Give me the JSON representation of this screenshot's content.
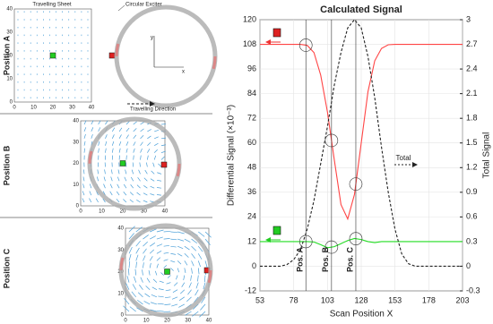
{
  "panels": [
    {
      "label": "Position A",
      "annotations": [
        "Travelling Sheet",
        "Circular Exciter",
        "Travelling Direction"
      ],
      "inset_axes": [
        "y",
        "x"
      ],
      "xticks": [
        0,
        10,
        20,
        30,
        40
      ],
      "yticks": [
        0,
        10,
        20,
        30,
        40
      ]
    },
    {
      "label": "Position B",
      "xticks": [
        0,
        10,
        20,
        30,
        40
      ],
      "yticks": [
        0,
        10,
        20,
        30,
        40
      ]
    },
    {
      "label": "Position C",
      "xticks": [
        0,
        10,
        20,
        30,
        40
      ],
      "yticks": [
        0,
        10,
        20,
        30,
        40
      ]
    }
  ],
  "chart_data": {
    "type": "line",
    "title": "Calculated Signal",
    "x_label": "Scan Position X",
    "y_label": "Differential Signal (×10⁻³)",
    "y2_label": "Total Signal",
    "x": [
      53,
      58,
      63,
      68,
      73,
      78,
      83,
      88,
      93,
      98,
      103,
      108,
      113,
      118,
      123,
      128,
      133,
      138,
      143,
      148,
      153,
      158,
      163,
      168,
      173,
      178,
      183,
      188,
      193,
      198,
      203
    ],
    "series": [
      {
        "color": "#ff4444",
        "values": [
          108,
          108,
          108,
          108,
          108,
          108,
          108,
          107.5,
          104,
          93,
          75,
          52,
          30,
          23,
          35,
          60,
          85,
          100,
          106,
          107.8,
          108,
          108,
          108,
          108,
          108,
          108,
          108,
          108,
          108,
          108,
          108
        ]
      },
      {
        "color": "#22dd22",
        "values": [
          12,
          12,
          12,
          12,
          12,
          12,
          12,
          12,
          11.8,
          10.5,
          9,
          9.5,
          11,
          12.5,
          13.5,
          13,
          12,
          11.5,
          12,
          12,
          12,
          12,
          12,
          12,
          12,
          12,
          12,
          12,
          12,
          12,
          12
        ]
      },
      {
        "color": "#222222",
        "axis": "y2",
        "style": "dashed",
        "values": [
          0,
          0,
          0,
          0,
          0.02,
          0.08,
          0.2,
          0.45,
          0.8,
          1.25,
          1.7,
          2.2,
          2.6,
          2.9,
          3,
          2.9,
          2.55,
          2.05,
          1.45,
          0.9,
          0.45,
          0.15,
          0.03,
          0,
          0,
          0,
          0,
          0,
          0,
          0,
          0
        ]
      }
    ],
    "total_label": "Total",
    "positions": [
      {
        "label": "Pos. A",
        "x": 87
      },
      {
        "label": "Pos. B",
        "x": 106
      },
      {
        "label": "Pos. C",
        "x": 124
      }
    ],
    "xlim": [
      53,
      203
    ],
    "xticks": [
      53,
      78,
      103,
      128,
      153,
      178,
      203
    ],
    "ylim": [
      -12,
      120
    ],
    "yticks": [
      -12,
      0,
      12,
      24,
      36,
      48,
      60,
      72,
      84,
      96,
      108,
      120
    ],
    "y2lim": [
      -0.3,
      3
    ],
    "y2ticks": [
      -0.3,
      0,
      0.3,
      0.6,
      0.9,
      1.2,
      1.5,
      1.8,
      2.1,
      2.4,
      2.7,
      3
    ],
    "grid": true
  }
}
